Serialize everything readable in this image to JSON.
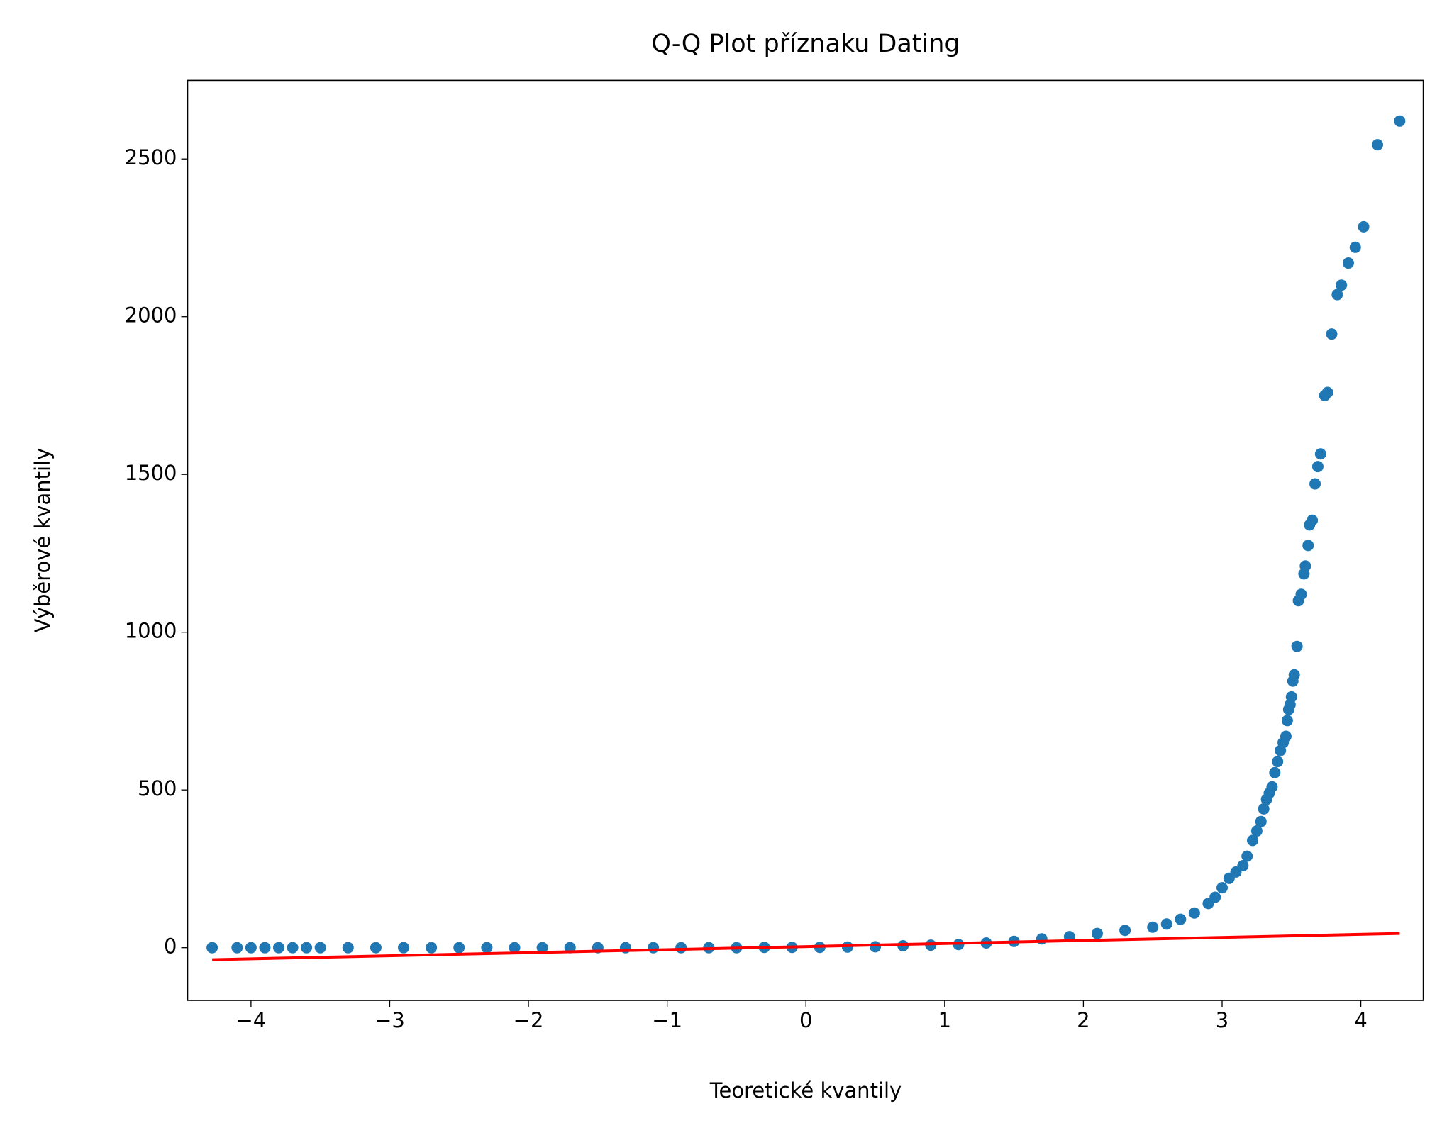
{
  "chart_data": {
    "type": "scatter",
    "title": "Q-Q Plot příznaku Dating",
    "x_label": "Teoretické kvantily",
    "y_label": "Výběrové kvantily",
    "xlim": [
      -4.457,
      4.45
    ],
    "ylim": [
      -167,
      2749
    ],
    "xticks": [
      {
        "value": -4,
        "label": "−4"
      },
      {
        "value": -3,
        "label": "−3"
      },
      {
        "value": -2,
        "label": "−2"
      },
      {
        "value": -1,
        "label": "−1"
      },
      0,
      1,
      2,
      3,
      4
    ],
    "yticks": [
      0,
      500,
      1000,
      1500,
      2000,
      2500
    ],
    "series": [
      {
        "type": "scatter",
        "color": "#1f77b4",
        "x": [
          -4.28,
          -4.1,
          -4.0,
          -3.9,
          -3.8,
          -3.7,
          -3.6,
          -3.5,
          -3.3,
          -3.1,
          -2.9,
          -2.7,
          -2.5,
          -2.3,
          -2.1,
          -1.9,
          -1.7,
          -1.5,
          -1.3,
          -1.1,
          -0.9,
          -0.7,
          -0.5,
          -0.3,
          -0.1,
          0.1,
          0.3,
          0.5,
          0.7,
          0.9,
          1.1,
          1.3,
          1.5,
          1.7,
          1.9,
          2.1,
          2.3,
          2.5,
          2.6,
          2.7,
          2.8,
          2.9,
          2.95,
          3.0,
          3.05,
          3.1,
          3.15,
          3.18,
          3.22,
          3.25,
          3.28,
          3.3,
          3.32,
          3.34,
          3.36,
          3.38,
          3.4,
          3.42,
          3.44,
          3.46,
          3.47,
          3.48,
          3.49,
          3.5,
          3.51,
          3.52,
          3.54,
          3.55,
          3.57,
          3.59,
          3.6,
          3.62,
          3.63,
          3.65,
          3.67,
          3.69,
          3.71,
          3.74,
          3.76,
          3.79,
          3.83,
          3.86,
          3.91,
          3.96,
          4.02,
          4.12,
          4.28
        ],
        "values": [
          0,
          0,
          0,
          0,
          0,
          0,
          0,
          0,
          0,
          0,
          0,
          0,
          0,
          0,
          0,
          0,
          0,
          0,
          0,
          0,
          0,
          0,
          0,
          1,
          1,
          1,
          2,
          3,
          6,
          8,
          10,
          15,
          20,
          28,
          35,
          45,
          55,
          65,
          75,
          90,
          110,
          140,
          160,
          190,
          220,
          240,
          260,
          290,
          340,
          370,
          400,
          440,
          470,
          490,
          510,
          555,
          590,
          625,
          650,
          670,
          720,
          755,
          770,
          795,
          845,
          865,
          955,
          1100,
          1120,
          1185,
          1210,
          1275,
          1340,
          1355,
          1470,
          1525,
          1565,
          1750,
          1760,
          1945,
          2070,
          2100,
          2170,
          2220,
          2285,
          2545,
          2620
        ]
      },
      {
        "type": "line",
        "color": "#ff0000",
        "x": [
          -4.28,
          4.28
        ],
        "values": [
          -38,
          45
        ]
      }
    ]
  }
}
